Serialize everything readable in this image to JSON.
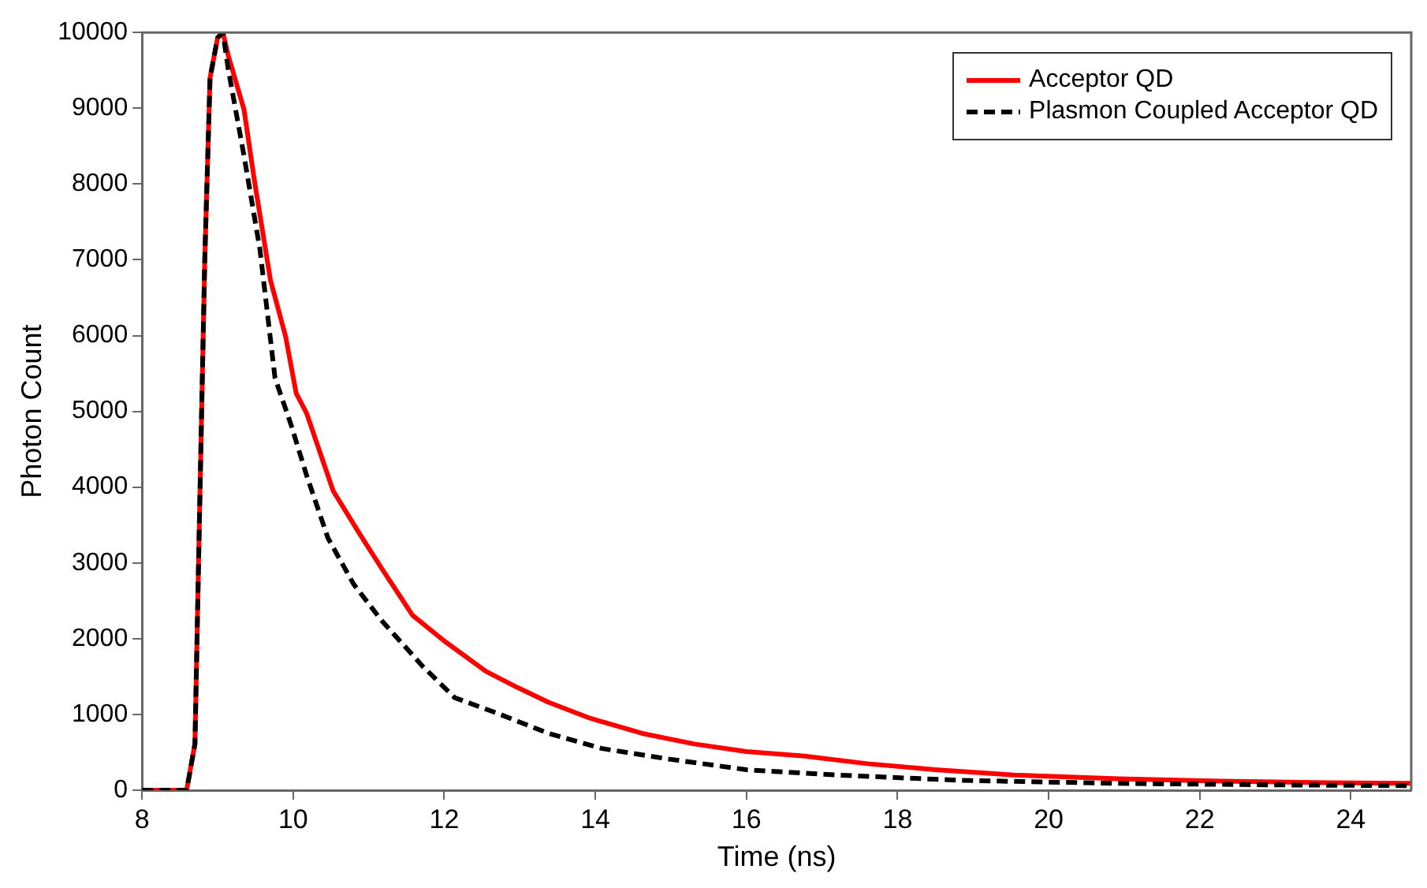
{
  "chart_data": {
    "type": "line",
    "xlabel": "Time (ns)",
    "ylabel": "Photon Count",
    "xlim": [
      8,
      24.8
    ],
    "xticks": [
      8,
      10,
      12,
      14,
      16,
      18,
      20,
      22,
      24
    ],
    "ylim": [
      0,
      10000
    ],
    "yticks": [
      0,
      1000,
      2000,
      3000,
      4000,
      5000,
      6000,
      7000,
      8000,
      9000,
      10000
    ],
    "grid": false,
    "legend": "top right",
    "marker": "none",
    "series": [
      {
        "name": "Acceptor QD",
        "color": "#ff0000",
        "line_style": "solid",
        "x": [
          8,
          8.3,
          8.59,
          8.7,
          8.76,
          8.83,
          8.9,
          9.0,
          9.07,
          9.14,
          9.35,
          9.49,
          9.7,
          9.9,
          10.04,
          10.18,
          10.53,
          10.87,
          11.17,
          11.58,
          12.0,
          12.55,
          12.96,
          13.38,
          13.93,
          14.62,
          15.31,
          16.0,
          16.77,
          17.6,
          18.5,
          19.54,
          20.93,
          22.3,
          23.7,
          24.8
        ],
        "values": [
          0,
          0,
          0,
          610,
          3600,
          7000,
          9400,
          9930,
          10000,
          9700,
          8980,
          8030,
          6730,
          5990,
          5240,
          4970,
          3950,
          3400,
          2930,
          2310,
          1970,
          1570,
          1360,
          1160,
          950,
          750,
          610,
          510,
          450,
          350,
          270,
          200,
          150,
          120,
          100,
          90
        ]
      },
      {
        "name": "Plasmon Coupled Acceptor QD",
        "color": "#000000",
        "line_style": "dashed",
        "x": [
          8,
          8.3,
          8.59,
          8.7,
          8.76,
          8.83,
          8.9,
          9.0,
          9.07,
          9.14,
          9.35,
          9.56,
          9.76,
          9.97,
          10.18,
          10.46,
          10.8,
          11.17,
          11.72,
          12.14,
          12.69,
          13.38,
          14.09,
          14.98,
          16.0,
          17.2,
          18.85,
          20.93,
          23.0,
          24.8
        ],
        "values": [
          0,
          0,
          0,
          610,
          3600,
          7000,
          9400,
          9930,
          10000,
          9520,
          8370,
          7140,
          5440,
          4830,
          4150,
          3330,
          2720,
          2240,
          1630,
          1220,
          1020,
          750,
          550,
          410,
          270,
          200,
          130,
          90,
          70,
          60
        ]
      }
    ]
  }
}
